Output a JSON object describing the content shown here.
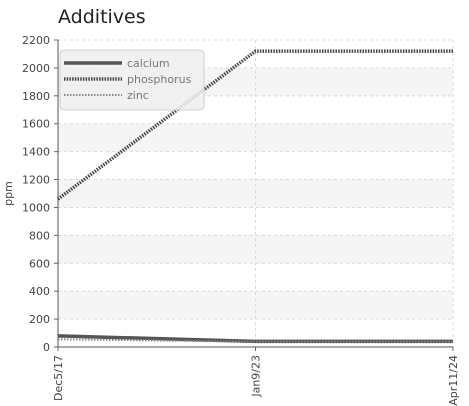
{
  "chart_data": {
    "type": "line",
    "title": "Additives",
    "ylabel": "ppm",
    "xlabel": "",
    "x_ticks": [
      "Dec5/17",
      "Jan9/23",
      "Apr11/24"
    ],
    "ylim": [
      0,
      2200
    ],
    "y_ticks": [
      0,
      200,
      400,
      600,
      800,
      1000,
      1200,
      1400,
      1600,
      1800,
      2000,
      2200
    ],
    "grid": true,
    "legend_position": "top-left",
    "series": [
      {
        "name": "calcium",
        "color": "#555555",
        "style": "solid",
        "points": [
          {
            "x": "Dec5/17",
            "y": 80
          },
          {
            "x": "Jan9/23",
            "y": 40
          },
          {
            "x": "Apr11/24",
            "y": 40
          }
        ]
      },
      {
        "name": "phosphorus",
        "color": "#444444",
        "style": "dense-dotted",
        "points": [
          {
            "x": "Dec5/17",
            "y": 1060
          },
          {
            "x": "Jan9/23",
            "y": 2120
          },
          {
            "x": "Apr11/24",
            "y": 2120
          }
        ]
      },
      {
        "name": "zinc",
        "color": "#888888",
        "style": "light-dotted",
        "points": [
          {
            "x": "Dec5/17",
            "y": 55
          },
          {
            "x": "Jan9/23",
            "y": 38
          },
          {
            "x": "Apr11/24",
            "y": 38
          }
        ]
      }
    ]
  }
}
